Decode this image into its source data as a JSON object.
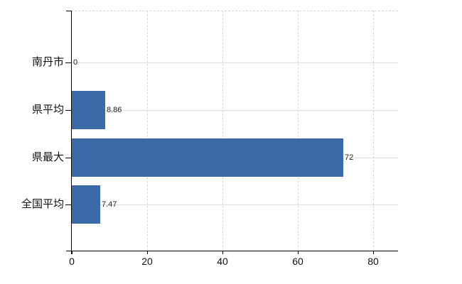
{
  "chart_data": {
    "type": "bar",
    "orientation": "horizontal",
    "categories": [
      "南丹市",
      "県平均",
      "県最大",
      "全国平均"
    ],
    "values": [
      0,
      8.86,
      72,
      7.47
    ],
    "value_labels": [
      "0",
      "8.86",
      "72",
      "7.47"
    ],
    "x_tick_values": [
      0,
      20,
      40,
      60,
      80
    ],
    "x_tick_labels": [
      "0",
      "20",
      "40",
      "60",
      "80"
    ],
    "xlim": [
      0,
      86.5
    ],
    "grid": "on",
    "legend": "none",
    "colors": {
      "bar": "#3b68a6",
      "bar_dither_dark": "#34619f",
      "bar_dither_light": "#4272ae",
      "axis": "#000000",
      "h_gridline": "#d8e4d4",
      "v_gridline": "#dcd9dc",
      "plot_top_border": "#d6d6d6",
      "text": "#111111",
      "background": "#ffffff"
    }
  }
}
